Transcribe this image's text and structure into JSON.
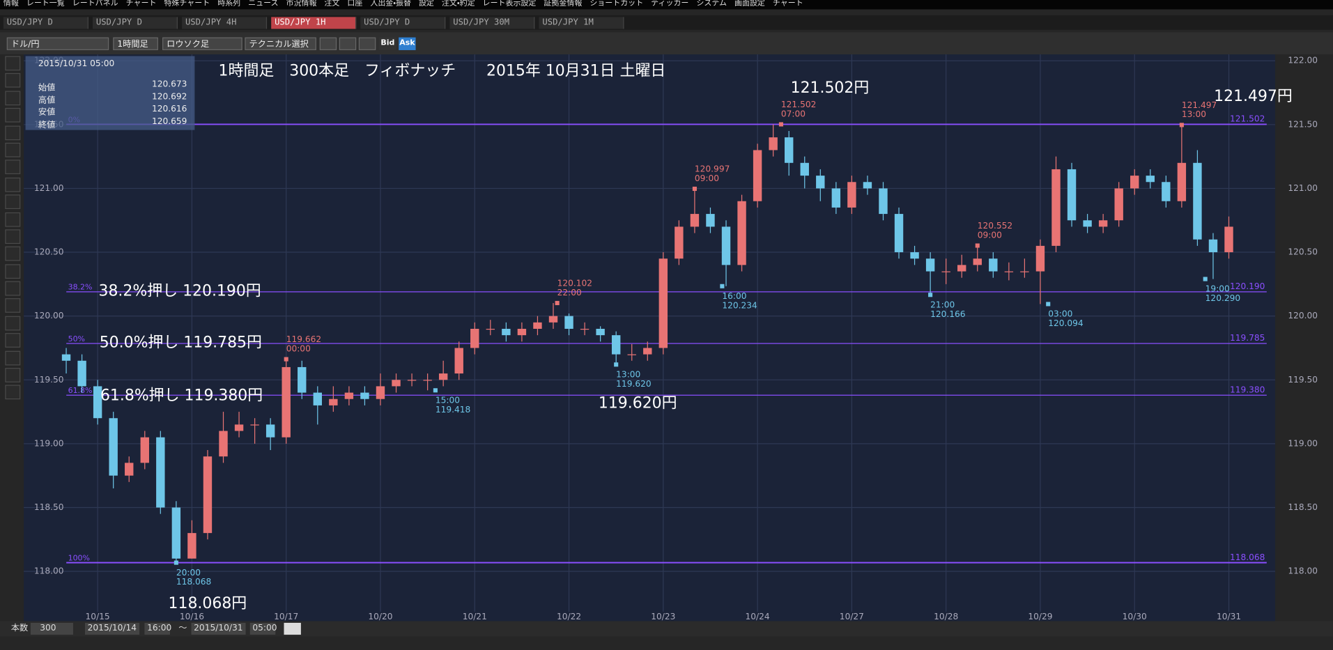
{
  "menu": [
    "情報",
    "レート一覧",
    "レートパネル",
    "チャート",
    "特殊チャート",
    "時系列",
    "ニュース",
    "市況情報",
    "注文",
    "口座",
    "入出金・振替",
    "設定",
    "注文・約定",
    "レート表示設定",
    "証拠金情報",
    "ショートカット",
    "ティッカー",
    "システム",
    "画面設定",
    "チャート"
  ],
  "tabs": [
    "USD/JPY D",
    "USD/JPY D",
    "USD/JPY 4H",
    "USD/JPY 1H",
    "USD/JPY D",
    "USD/JPY 30M",
    "USD/JPY 1M"
  ],
  "active_tab": 3,
  "toolbar": {
    "pair": "ドル/円",
    "timeframe": "1時間足",
    "chart_style": "ロウソク足",
    "technical": "テクニカル選択",
    "bid": "Bid",
    "ask": "Ask"
  },
  "info_box": {
    "datetime": "2015/10/31 05:00",
    "rows": [
      [
        "始値",
        "120.673"
      ],
      [
        "高値",
        "120.692"
      ],
      [
        "安値",
        "120.616"
      ],
      [
        "終値",
        "120.659"
      ]
    ]
  },
  "notes": [
    "1時間足　300本足　フィボナッチ　　2015年 10月31日 土曜日",
    "121.502円",
    "121.497円",
    "38.2%押し 120.190円",
    "50.0%押し 119.785円",
    "61.8%押し 119.380円",
    "119.620円",
    "118.068円"
  ],
  "footer": {
    "count_label": "本数",
    "count": "300",
    "from_date": "2015/10/14",
    "from_time": "16:00",
    "tilde": "～",
    "to_date": "2015/10/31",
    "to_time": "05:00"
  },
  "chart_data": {
    "type": "candlestick",
    "up_color": "#e87474",
    "down_color": "#6ec6e8",
    "grid": true,
    "xlim": [
      -10.8,
      307.8
    ],
    "ylim": [
      117.63,
      122.05
    ],
    "xticks": [
      {
        "value": 8,
        "label": "10/15"
      },
      {
        "value": 32,
        "label": "10/16"
      },
      {
        "value": 56,
        "label": "10/17"
      },
      {
        "value": 80,
        "label": "10/20"
      },
      {
        "value": 104,
        "label": "10/21"
      },
      {
        "value": 128,
        "label": "10/22"
      },
      {
        "value": 152,
        "label": "10/23"
      },
      {
        "value": 176,
        "label": "10/24"
      },
      {
        "value": 200,
        "label": "10/27"
      },
      {
        "value": 224,
        "label": "10/28"
      },
      {
        "value": 248,
        "label": "10/29"
      },
      {
        "value": 272,
        "label": "10/30"
      },
      {
        "value": 296,
        "label": "10/31"
      }
    ],
    "yticks": [
      {
        "value": 118,
        "label": "118.00"
      },
      {
        "value": 118.5,
        "label": "118.50"
      },
      {
        "value": 119,
        "label": "119.00"
      },
      {
        "value": 119.5,
        "label": "119.50"
      },
      {
        "value": 120,
        "label": "120.00"
      },
      {
        "value": 120.5,
        "label": "120.50"
      },
      {
        "value": 121,
        "label": "121.00"
      },
      {
        "value": 121.5,
        "label": "121.50"
      },
      {
        "value": 122,
        "label": "122.00"
      }
    ],
    "x": [
      0,
      4,
      8,
      12,
      16,
      20,
      24,
      28,
      32,
      36,
      40,
      44,
      48,
      52,
      56,
      60,
      64,
      68,
      72,
      76,
      80,
      84,
      88,
      92,
      96,
      100,
      104,
      108,
      112,
      116,
      120,
      124,
      128,
      132,
      136,
      140,
      144,
      148,
      152,
      156,
      160,
      164,
      168,
      172,
      176,
      180,
      184,
      188,
      192,
      196,
      200,
      204,
      208,
      212,
      216,
      220,
      224,
      228,
      232,
      236,
      240,
      244,
      248,
      252,
      256,
      260,
      264,
      268,
      272,
      276,
      280,
      284,
      288,
      292,
      296
    ],
    "ohlc": [
      [
        119.7,
        119.75,
        119.55,
        119.65
      ],
      [
        119.65,
        119.7,
        119.4,
        119.45
      ],
      [
        119.45,
        119.5,
        119.15,
        119.2
      ],
      [
        119.2,
        119.25,
        118.65,
        118.75
      ],
      [
        118.75,
        118.9,
        118.7,
        118.85
      ],
      [
        118.85,
        119.1,
        118.8,
        119.05
      ],
      [
        119.05,
        119.1,
        118.45,
        118.5
      ],
      [
        118.5,
        118.55,
        118.068,
        118.1
      ],
      [
        118.1,
        118.4,
        118.1,
        118.3
      ],
      [
        118.3,
        118.95,
        118.25,
        118.9
      ],
      [
        118.9,
        119.25,
        118.85,
        119.1
      ],
      [
        119.1,
        119.25,
        119.05,
        119.15
      ],
      [
        119.15,
        119.2,
        119.0,
        119.15
      ],
      [
        119.15,
        119.2,
        118.95,
        119.05
      ],
      [
        119.05,
        119.662,
        119.0,
        119.6
      ],
      [
        119.6,
        119.65,
        119.35,
        119.4
      ],
      [
        119.4,
        119.45,
        119.15,
        119.3
      ],
      [
        119.3,
        119.45,
        119.25,
        119.35
      ],
      [
        119.35,
        119.45,
        119.3,
        119.4
      ],
      [
        119.4,
        119.45,
        119.3,
        119.35
      ],
      [
        119.35,
        119.55,
        119.3,
        119.45
      ],
      [
        119.45,
        119.55,
        119.4,
        119.5
      ],
      [
        119.5,
        119.55,
        119.45,
        119.5
      ],
      [
        119.5,
        119.55,
        119.418,
        119.5
      ],
      [
        119.5,
        119.65,
        119.45,
        119.55
      ],
      [
        119.55,
        119.8,
        119.5,
        119.75
      ],
      [
        119.75,
        119.95,
        119.7,
        119.9
      ],
      [
        119.9,
        119.97,
        119.85,
        119.9
      ],
      [
        119.9,
        119.95,
        119.8,
        119.85
      ],
      [
        119.85,
        119.95,
        119.8,
        119.9
      ],
      [
        119.9,
        120.0,
        119.85,
        119.95
      ],
      [
        119.95,
        120.102,
        119.9,
        120.0
      ],
      [
        120.0,
        120.02,
        119.85,
        119.9
      ],
      [
        119.9,
        119.95,
        119.85,
        119.9
      ],
      [
        119.9,
        119.92,
        119.8,
        119.85
      ],
      [
        119.85,
        119.88,
        119.62,
        119.7
      ],
      [
        119.7,
        119.78,
        119.65,
        119.7
      ],
      [
        119.7,
        119.8,
        119.65,
        119.75
      ],
      [
        119.75,
        120.5,
        119.7,
        120.45
      ],
      [
        120.45,
        120.75,
        120.4,
        120.7
      ],
      [
        120.7,
        120.997,
        120.65,
        120.8
      ],
      [
        120.8,
        120.85,
        120.65,
        120.7
      ],
      [
        120.7,
        120.75,
        120.234,
        120.4
      ],
      [
        120.4,
        120.95,
        120.35,
        120.9
      ],
      [
        120.9,
        121.35,
        120.85,
        121.3
      ],
      [
        121.3,
        121.502,
        121.25,
        121.4
      ],
      [
        121.4,
        121.45,
        121.1,
        121.2
      ],
      [
        121.2,
        121.25,
        121.0,
        121.1
      ],
      [
        121.1,
        121.15,
        120.9,
        121.0
      ],
      [
        121.0,
        121.05,
        120.8,
        120.85
      ],
      [
        120.85,
        121.1,
        120.8,
        121.05
      ],
      [
        121.05,
        121.1,
        120.95,
        121.0
      ],
      [
        121.0,
        121.05,
        120.75,
        120.8
      ],
      [
        120.8,
        120.85,
        120.45,
        120.5
      ],
      [
        120.5,
        120.55,
        120.4,
        120.45
      ],
      [
        120.45,
        120.5,
        120.166,
        120.35
      ],
      [
        120.35,
        120.45,
        120.25,
        120.35
      ],
      [
        120.35,
        120.48,
        120.3,
        120.4
      ],
      [
        120.4,
        120.552,
        120.35,
        120.45
      ],
      [
        120.45,
        120.5,
        120.3,
        120.35
      ],
      [
        120.35,
        120.42,
        120.28,
        120.35
      ],
      [
        120.35,
        120.45,
        120.3,
        120.35
      ],
      [
        120.35,
        120.6,
        120.094,
        120.55
      ],
      [
        120.55,
        121.25,
        120.5,
        121.15
      ],
      [
        121.15,
        121.2,
        120.7,
        120.75
      ],
      [
        120.75,
        120.8,
        120.65,
        120.7
      ],
      [
        120.7,
        120.8,
        120.65,
        120.75
      ],
      [
        120.75,
        121.05,
        120.7,
        121.0
      ],
      [
        121.0,
        121.15,
        120.95,
        121.1
      ],
      [
        121.1,
        121.15,
        121.0,
        121.05
      ],
      [
        121.05,
        121.1,
        120.85,
        120.9
      ],
      [
        120.9,
        121.497,
        120.85,
        121.2
      ],
      [
        121.2,
        121.3,
        120.55,
        120.6
      ],
      [
        120.6,
        120.65,
        120.29,
        120.5
      ],
      [
        120.5,
        120.78,
        120.45,
        120.7
      ]
    ],
    "fib_levels": [
      {
        "name": "0%",
        "value": 121.502,
        "label": "121.502"
      },
      {
        "name": "38.2%",
        "value": 120.19,
        "label": "120.190"
      },
      {
        "name": "50%",
        "value": 119.785,
        "label": "119.785"
      },
      {
        "name": "61.8%",
        "value": 119.38,
        "label": "119.380"
      },
      {
        "name": "100%",
        "value": 118.068,
        "label": "118.068"
      }
    ],
    "fib_color": "#8a4fff",
    "highs": [
      {
        "x": 56,
        "time": "00:00",
        "value": 119.662,
        "label": "119.662"
      },
      {
        "x": 125,
        "time": "22:00",
        "value": 120.102,
        "label": "120.102"
      },
      {
        "x": 160,
        "time": "09:00",
        "value": 120.997,
        "label": "120.997"
      },
      {
        "x": 182,
        "time": "07:00",
        "value": 121.502,
        "label": "121.502"
      },
      {
        "x": 232,
        "time": "09:00",
        "value": 120.552,
        "label": "120.552"
      },
      {
        "x": 284,
        "time": "13:00",
        "value": 121.497,
        "label": "121.497"
      }
    ],
    "lows": [
      {
        "x": 28,
        "time": "20:00",
        "value": 118.068,
        "label": "118.068"
      },
      {
        "x": 94,
        "time": "15:00",
        "value": 119.418,
        "label": "119.418"
      },
      {
        "x": 140,
        "time": "13:00",
        "value": 119.62,
        "label": "119.620"
      },
      {
        "x": 167,
        "time": "16:00",
        "value": 120.234,
        "label": "120.234"
      },
      {
        "x": 220,
        "time": "21:00",
        "value": 120.166,
        "label": "120.166"
      },
      {
        "x": 250,
        "time": "03:00",
        "value": 120.094,
        "label": "120.094"
      },
      {
        "x": 290,
        "time": "19:00",
        "value": 120.29,
        "label": "120.290"
      }
    ]
  }
}
